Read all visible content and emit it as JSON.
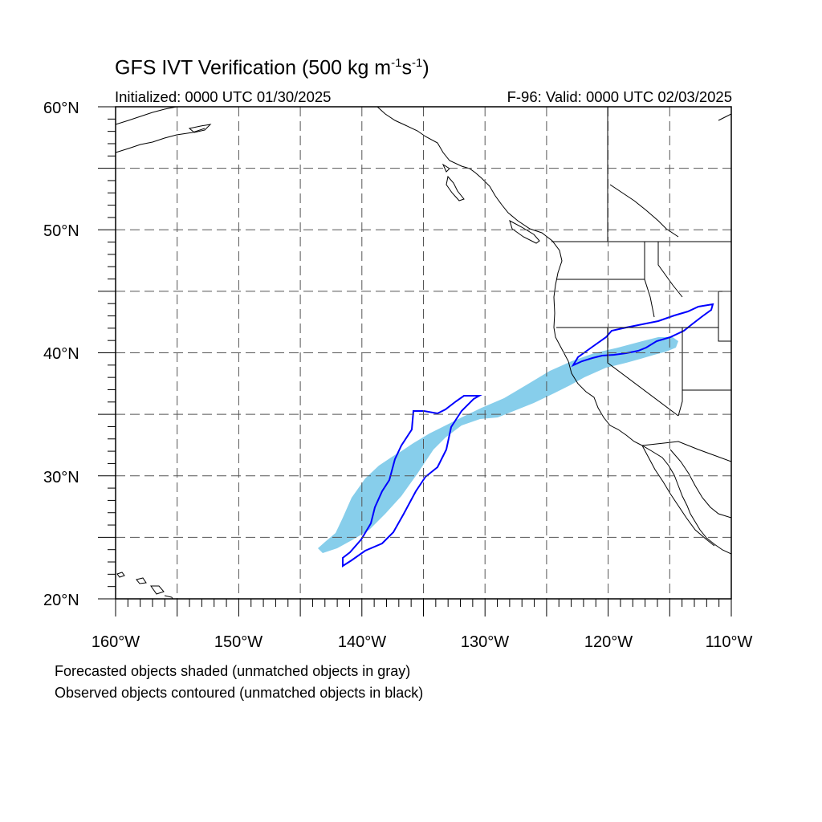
{
  "header": {
    "title_main": "GFS IVT Verification (500 kg m",
    "title_exp1": "-1",
    "title_mid": "s",
    "title_exp2": "-1",
    "title_end": ")",
    "initialized": "Initialized: 0000 UTC 01/30/2025",
    "valid": "F-96: Valid: 0000 UTC 02/03/2025"
  },
  "axes": {
    "lat_labels": [
      "60°N",
      "50°N",
      "40°N",
      "30°N",
      "20°N"
    ],
    "lon_labels": [
      "160°W",
      "150°W",
      "140°W",
      "130°W",
      "120°W",
      "110°W"
    ],
    "lat_range": [
      20,
      60
    ],
    "lon_range": [
      -160,
      -110
    ],
    "grid": "dashed, every 5°"
  },
  "colors": {
    "forecast_fill": "#87ceeb",
    "observed_contour": "#0000ff",
    "coastline": "#000000",
    "grid": "#555555"
  },
  "footnotes": {
    "line1": "Forecasted objects shaded (unmatched objects in gray)",
    "line2": "Observed objects contoured (unmatched objects in black)"
  }
}
